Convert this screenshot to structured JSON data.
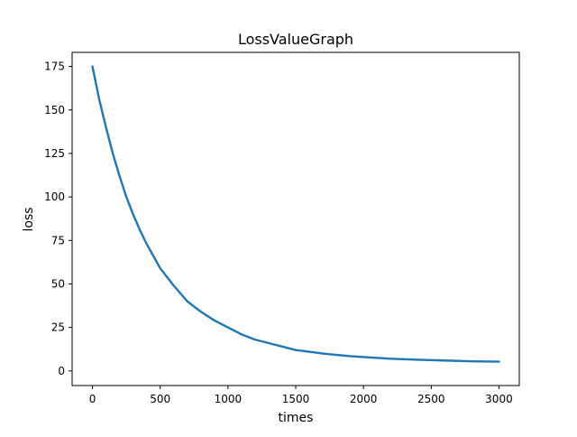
{
  "chart_data": {
    "type": "line",
    "title": "LossValueGraph",
    "xlabel": "times",
    "ylabel": "loss",
    "xlim": [
      -150,
      3150
    ],
    "ylim": [
      -8.4,
      183.1
    ],
    "x_ticks": [
      0,
      500,
      1000,
      1500,
      2000,
      2500,
      3000
    ],
    "y_ticks": [
      0,
      25,
      50,
      75,
      100,
      125,
      150,
      175
    ],
    "x_tick_labels": [
      "0",
      "500",
      "1000",
      "1500",
      "2000",
      "2500",
      "3000"
    ],
    "y_tick_labels": [
      "0",
      "25",
      "50",
      "75",
      "100",
      "125",
      "150",
      "175"
    ],
    "grid": false,
    "legend": "none",
    "series": [
      {
        "color": "#1f77b4",
        "x": [
          0,
          50,
          100,
          150,
          200,
          250,
          300,
          350,
          400,
          450,
          500,
          600,
          700,
          800,
          900,
          1000,
          1100,
          1200,
          1300,
          1400,
          1500,
          1600,
          1700,
          1800,
          1900,
          2000,
          2200,
          2400,
          2600,
          2800,
          3000
        ],
        "y": [
          175,
          156,
          140,
          125,
          112,
          100,
          90,
          81,
          73,
          66,
          59,
          49,
          40,
          34,
          29,
          25,
          21,
          18,
          16,
          14,
          12,
          11,
          10,
          9.2,
          8.5,
          8,
          7,
          6.4,
          6,
          5.5,
          5.3
        ]
      }
    ]
  }
}
